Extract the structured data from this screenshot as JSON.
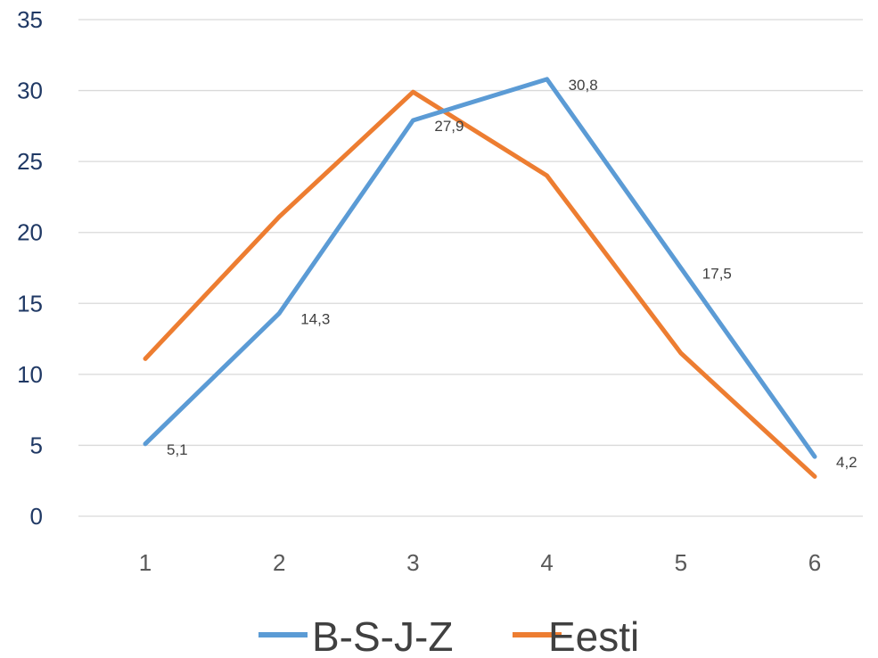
{
  "chart_data": {
    "type": "line",
    "x": [
      1,
      2,
      3,
      4,
      5,
      6
    ],
    "categories": [
      "1",
      "2",
      "3",
      "4",
      "5",
      "6"
    ],
    "ylim": [
      0,
      35
    ],
    "yticks": [
      "0",
      "5",
      "10",
      "15",
      "20",
      "25",
      "30",
      "35"
    ],
    "grid": true,
    "legend_position": "bottom",
    "series": [
      {
        "name": "B-S-J-Z",
        "color": "#5b9bd5",
        "values": [
          5.1,
          14.3,
          27.9,
          30.8,
          17.5,
          4.2
        ],
        "data_labels": [
          "5,1",
          "14,3",
          "27,9",
          "30,8",
          "17,5",
          "4,2"
        ]
      },
      {
        "name": "Eesti",
        "color": "#ed7d31",
        "values": [
          11.1,
          21.1,
          29.9,
          24.0,
          11.5,
          2.8
        ],
        "data_labels": []
      }
    ]
  }
}
